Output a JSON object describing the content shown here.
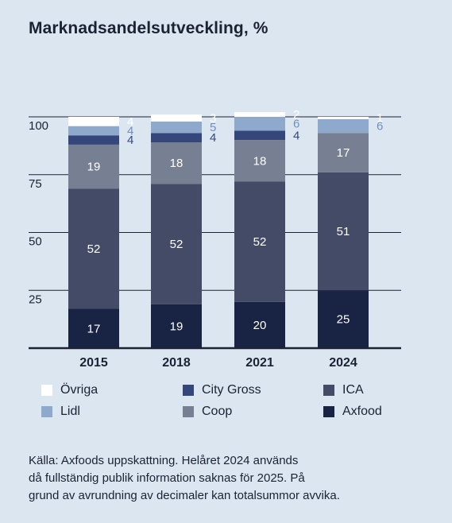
{
  "title": "Marknadsandelsutveckling, %",
  "colors": {
    "background": "#dce6f0",
    "Övriga": "#ffffff",
    "Lidl": "#8fa9cc",
    "City Gross": "#35477a",
    "Coop": "#777f92",
    "ICA": "#444b66",
    "Axfood": "#192344",
    "label_light": "#6e90c0"
  },
  "chart_data": {
    "type": "bar",
    "stacked": true,
    "title": "Marknadsandelsutveckling, %",
    "categories": [
      "2015",
      "2018",
      "2021",
      "2024"
    ],
    "ylim": [
      0,
      100
    ],
    "yticks": [
      "25",
      "50",
      "75",
      "100"
    ],
    "grid": true,
    "series": [
      {
        "name": "Axfood",
        "values": [
          17,
          19,
          20,
          25
        ]
      },
      {
        "name": "ICA",
        "values": [
          52,
          52,
          52,
          51
        ]
      },
      {
        "name": "Coop",
        "values": [
          19,
          18,
          18,
          17
        ]
      },
      {
        "name": "City Gross",
        "values": [
          4,
          4,
          4,
          0
        ]
      },
      {
        "name": "Lidl",
        "values": [
          4,
          5,
          6,
          6
        ]
      },
      {
        "name": "Övriga",
        "values": [
          4,
          3,
          2,
          1
        ]
      }
    ]
  },
  "legend": [
    {
      "label": "Övriga",
      "color": "#ffffff"
    },
    {
      "label": "City Gross",
      "color": "#35477a"
    },
    {
      "label": "ICA",
      "color": "#444b66"
    },
    {
      "label": "Lidl",
      "color": "#8fa9cc"
    },
    {
      "label": "Coop",
      "color": "#777f92"
    },
    {
      "label": "Axfood",
      "color": "#192344"
    }
  ],
  "source_text": [
    "Källa: Axfoods uppskattning. Helåret 2024 används",
    "då fullständig publik information saknas för 2025. På",
    "grund av avrundning av decimaler kan totalsummor avvika."
  ]
}
